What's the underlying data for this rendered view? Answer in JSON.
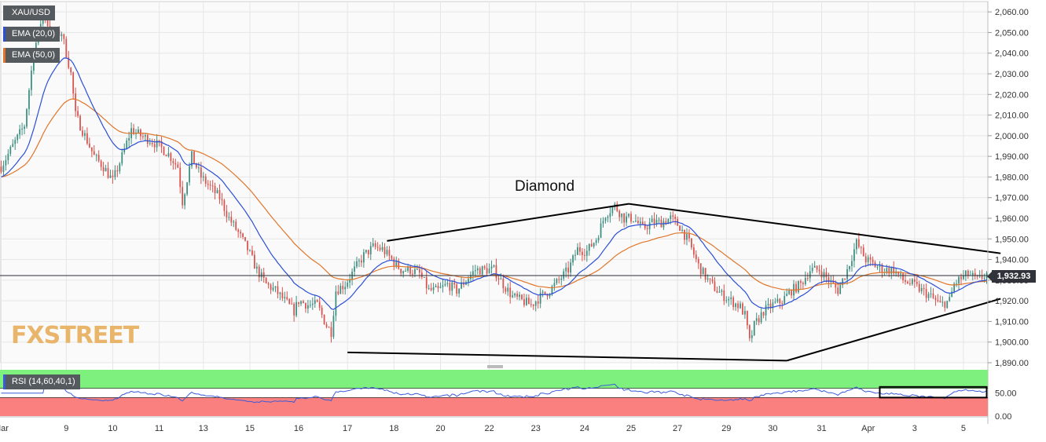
{
  "colors": {
    "bull": "#3e8f80",
    "bear": "#d9534f",
    "ema20": "#2b4fd6",
    "ema50": "#e0762a",
    "rsi_line": "#3a5bd9",
    "rsi_upper_zone": "#7df07d",
    "rsi_lower_zone": "#fa7f7f",
    "grid": "#e6e6e6"
  },
  "legend": {
    "symbol": "XAU/USD",
    "ema20": "EMA (20,0)",
    "ema50": "EMA (50,0)",
    "rsi": "RSI (14,60,40,1)"
  },
  "watermark": {
    "fx": "FX",
    "street": "STREET"
  },
  "last_price": "1,932.93",
  "chart_data": {
    "type": "candlestick",
    "title": "",
    "annotation": "Diamond",
    "y_axis": {
      "min": 1890,
      "max": 2065,
      "ticks": [
        "1,890.00",
        "1,900.00",
        "1,910.00",
        "1,920.00",
        "1,930.00",
        "1,940.00",
        "1,950.00",
        "1,960.00",
        "1,970.00",
        "1,980.00",
        "1,990.00",
        "2,000.00",
        "2,010.00",
        "2,020.00",
        "2,030.00",
        "2,040.00",
        "2,050.00",
        "2,060.00"
      ]
    },
    "x_axis": {
      "labels": [
        "Mar",
        "9",
        "10",
        "11",
        "13",
        "15",
        "16",
        "17",
        "18",
        "20",
        "22",
        "23",
        "24",
        "25",
        "27",
        "29",
        "30",
        "31",
        "Apr",
        "3",
        "5"
      ],
      "label_index": [
        0,
        28,
        48,
        68,
        87,
        107,
        128,
        149,
        169,
        189,
        210,
        230,
        251,
        271,
        291,
        312,
        332,
        353,
        373,
        393,
        414
      ]
    },
    "price_path": [
      [
        0,
        1985
      ],
      [
        6,
        1997
      ],
      [
        10,
        2005
      ],
      [
        14,
        2040
      ],
      [
        18,
        2060
      ],
      [
        22,
        2048
      ],
      [
        26,
        2050
      ],
      [
        30,
        2030
      ],
      [
        32,
        2010
      ],
      [
        36,
        2000
      ],
      [
        40,
        1990
      ],
      [
        44,
        1985
      ],
      [
        48,
        1978
      ],
      [
        52,
        1990
      ],
      [
        56,
        2003
      ],
      [
        60,
        2000
      ],
      [
        64,
        1998
      ],
      [
        68,
        1995
      ],
      [
        72,
        1991
      ],
      [
        76,
        1985
      ],
      [
        78,
        1968
      ],
      [
        82,
        1990
      ],
      [
        86,
        1980
      ],
      [
        90,
        1975
      ],
      [
        94,
        1970
      ],
      [
        98,
        1960
      ],
      [
        102,
        1953
      ],
      [
        106,
        1945
      ],
      [
        110,
        1935
      ],
      [
        114,
        1928
      ],
      [
        118,
        1925
      ],
      [
        122,
        1920
      ],
      [
        126,
        1915
      ],
      [
        128,
        1920
      ],
      [
        132,
        1918
      ],
      [
        136,
        1918
      ],
      [
        140,
        1908
      ],
      [
        142,
        1905
      ],
      [
        144,
        1925
      ],
      [
        148,
        1928
      ],
      [
        152,
        1935
      ],
      [
        156,
        1942
      ],
      [
        160,
        1946
      ],
      [
        164,
        1945
      ],
      [
        168,
        1940
      ],
      [
        172,
        1935
      ],
      [
        176,
        1935
      ],
      [
        180,
        1933
      ],
      [
        184,
        1925
      ],
      [
        188,
        1925
      ],
      [
        192,
        1928
      ],
      [
        196,
        1925
      ],
      [
        200,
        1930
      ],
      [
        204,
        1935
      ],
      [
        208,
        1935
      ],
      [
        212,
        1935
      ],
      [
        216,
        1928
      ],
      [
        220,
        1922
      ],
      [
        224,
        1920
      ],
      [
        228,
        1918
      ],
      [
        232,
        1922
      ],
      [
        236,
        1925
      ],
      [
        240,
        1930
      ],
      [
        244,
        1935
      ],
      [
        248,
        1945
      ],
      [
        252,
        1944
      ],
      [
        256,
        1950
      ],
      [
        260,
        1962
      ],
      [
        264,
        1966
      ],
      [
        268,
        1960
      ],
      [
        272,
        1960
      ],
      [
        276,
        1955
      ],
      [
        280,
        1958
      ],
      [
        284,
        1958
      ],
      [
        288,
        1960
      ],
      [
        292,
        1956
      ],
      [
        296,
        1948
      ],
      [
        300,
        1937
      ],
      [
        304,
        1930
      ],
      [
        308,
        1925
      ],
      [
        310,
        1923
      ],
      [
        314,
        1920
      ],
      [
        318,
        1917
      ],
      [
        320,
        1913
      ],
      [
        322,
        1900
      ],
      [
        324,
        1908
      ],
      [
        328,
        1915
      ],
      [
        332,
        1918
      ],
      [
        336,
        1920
      ],
      [
        340,
        1925
      ],
      [
        344,
        1928
      ],
      [
        348,
        1935
      ],
      [
        352,
        1935
      ],
      [
        356,
        1930
      ],
      [
        360,
        1925
      ],
      [
        364,
        1935
      ],
      [
        368,
        1948
      ],
      [
        372,
        1940
      ],
      [
        376,
        1937
      ],
      [
        380,
        1935
      ],
      [
        384,
        1935
      ],
      [
        388,
        1930
      ],
      [
        392,
        1928
      ],
      [
        396,
        1925
      ],
      [
        400,
        1922
      ],
      [
        404,
        1918
      ],
      [
        408,
        1920
      ],
      [
        410,
        1928
      ],
      [
        412,
        1930
      ],
      [
        416,
        1933
      ],
      [
        420,
        1930
      ],
      [
        424,
        1933
      ]
    ],
    "diamond_lines": [
      {
        "from": [
          149,
          1895
        ],
        "to": [
          338,
          1891
        ]
      },
      {
        "from": [
          338,
          1891
        ],
        "to": [
          430,
          1921
        ]
      },
      {
        "from": [
          166,
          1949
        ],
        "to": [
          270,
          1967
        ]
      },
      {
        "from": [
          270,
          1967
        ],
        "to": [
          430,
          1943
        ]
      }
    ],
    "rsi": {
      "ticks": [
        "0.00",
        "50.00"
      ],
      "levels": [
        60,
        40
      ],
      "y_min": 0,
      "y_max": 100
    }
  }
}
